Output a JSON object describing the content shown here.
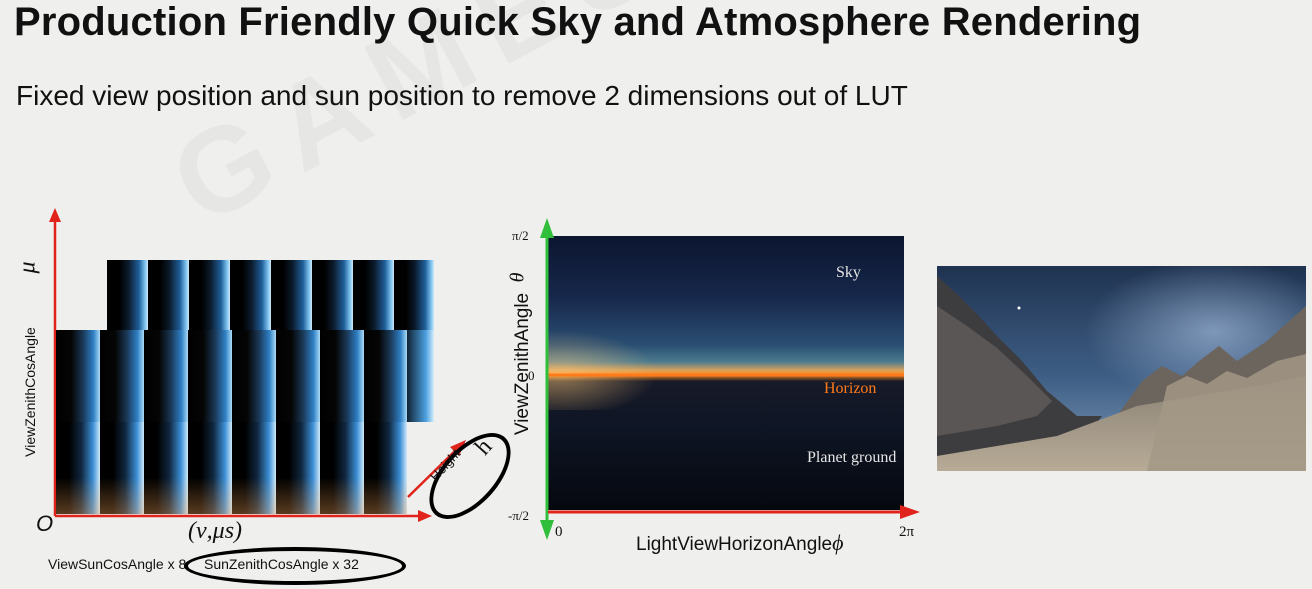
{
  "slide": {
    "title": "Production Friendly Quick Sky and Atmosphere Rendering",
    "subtitle": "Fixed view position and sun position to remove 2 dimensions out of LUT",
    "watermark": "GAMES"
  },
  "left_figure": {
    "y_axis_symbol": "μ",
    "y_axis_label": "ViewZenithCosAngle",
    "origin_label": "O",
    "x_axis_symbol": "(ν,μs)",
    "x_axis_label_part1": "ViewSunCosAngle x 8,",
    "x_axis_label_part2": "SunZenithCosAngle x 32",
    "height_label": "Height",
    "height_symbol": "h",
    "top_row_tiles": 8,
    "bottom_row_tiles": 8
  },
  "middle_figure": {
    "y_axis_label": "ViewZenithAngle",
    "y_axis_symbol": "θ",
    "y_tick_top": "π/2",
    "y_tick_mid": "0",
    "y_tick_bottom": "-π/2",
    "x_tick_left": "0",
    "x_tick_right": "2π",
    "x_axis_label": "LightViewHorizonAngle",
    "x_axis_symbol": "ϕ",
    "region_sky": "Sky",
    "region_horizon": "Horizon",
    "region_ground": "Planet ground"
  },
  "colors": {
    "axis_red": "#e0231b",
    "axis_green": "#2fbf3a",
    "horizon_orange": "#ff7a1a"
  }
}
